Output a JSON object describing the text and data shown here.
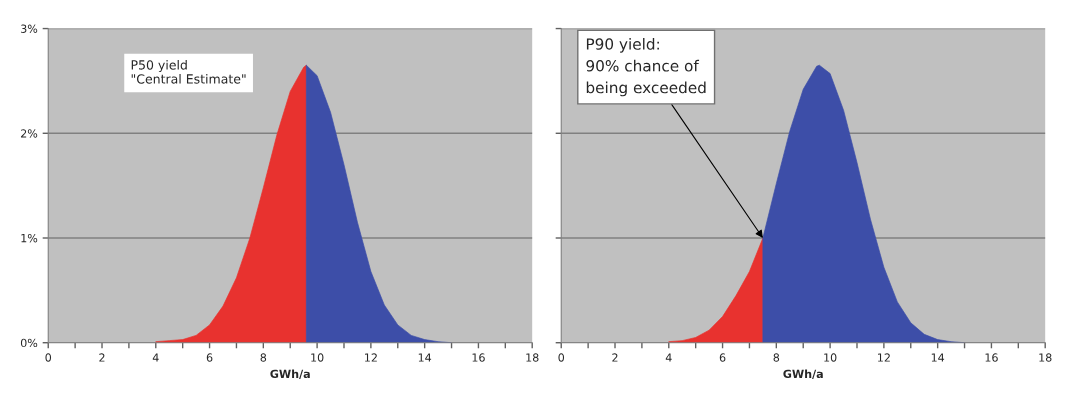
{
  "chart_data": [
    {
      "type": "area",
      "xlabel": "GWh/a",
      "ylim": [
        0,
        3
      ],
      "xlim": [
        0,
        18
      ],
      "yticks": [
        {
          "value": 0,
          "label": "0%"
        },
        {
          "value": 1,
          "label": "1%"
        },
        {
          "value": 2,
          "label": "2%"
        },
        {
          "value": 3,
          "label": "3%"
        }
      ],
      "xticks": [
        0,
        {
          "value": 1,
          "label": null
        },
        2,
        {
          "value": 3,
          "label": null
        },
        4,
        {
          "value": 5,
          "label": null
        },
        6,
        {
          "value": 7,
          "label": null
        },
        8,
        {
          "value": 9,
          "label": null
        },
        10,
        {
          "value": 11,
          "label": null
        },
        12,
        {
          "value": 13,
          "label": null
        },
        14,
        {
          "value": 15,
          "label": null
        },
        16,
        {
          "value": 17,
          "label": null
        },
        18
      ],
      "grid": "y",
      "annotations": [
        "P50 yield\n\"Central Estimate\""
      ],
      "series": [
        {
          "color": "#e8322f",
          "x": [
            4.0,
            4.5,
            5.0,
            5.5,
            6.0,
            6.5,
            7.0,
            7.5,
            8.0,
            8.5,
            9.0,
            9.5,
            9.6
          ],
          "values": [
            0.01,
            0.02,
            0.03,
            0.07,
            0.17,
            0.35,
            0.62,
            1.0,
            1.48,
            1.98,
            2.4,
            2.63,
            2.65
          ]
        },
        {
          "color": "#3d4ea8",
          "x": [
            9.6,
            10.0,
            10.5,
            11.0,
            11.5,
            12.0,
            12.5,
            13.0,
            13.5,
            14.0,
            14.5,
            15.0
          ],
          "values": [
            2.65,
            2.55,
            2.2,
            1.7,
            1.15,
            0.68,
            0.36,
            0.17,
            0.07,
            0.03,
            0.01,
            0.0
          ]
        }
      ]
    },
    {
      "type": "area",
      "xlabel": "GWh/a",
      "ylim": [
        0,
        3
      ],
      "xlim": [
        0,
        18
      ],
      "tick_labels": "x",
      "yticks": [
        {
          "value": 0,
          "label": null
        },
        {
          "value": 1,
          "label": null
        },
        {
          "value": 2,
          "label": null
        },
        {
          "value": 3,
          "label": null
        }
      ],
      "xticks": [
        0,
        {
          "value": 1,
          "label": null
        },
        2,
        {
          "value": 3,
          "label": null
        },
        4,
        {
          "value": 5,
          "label": null
        },
        6,
        {
          "value": 7,
          "label": null
        },
        8,
        {
          "value": 9,
          "label": null
        },
        10,
        {
          "value": 11,
          "label": null
        },
        12,
        {
          "value": 13,
          "label": null
        },
        14,
        {
          "value": 15,
          "label": null
        },
        16,
        {
          "value": 17,
          "label": null
        },
        18
      ],
      "grid": "y",
      "annotations": [
        {
          "text": "P90 yield:\n90% chance of\nbeing exceeded",
          "x": 7.5,
          "y": 1.0
        }
      ],
      "series": [
        {
          "color": "#e8322f",
          "x": [
            4.0,
            4.5,
            5.0,
            5.5,
            6.0,
            6.5,
            7.0,
            7.5
          ],
          "values": [
            0.01,
            0.02,
            0.05,
            0.12,
            0.25,
            0.45,
            0.68,
            1.0
          ]
        },
        {
          "color": "#3d4ea8",
          "x": [
            7.5,
            8.0,
            8.5,
            9.0,
            9.5,
            9.6,
            10.0,
            10.5,
            11.0,
            11.5,
            12.0,
            12.5,
            13.0,
            13.5,
            14.0,
            14.5,
            15.0
          ],
          "values": [
            1.0,
            1.52,
            2.02,
            2.42,
            2.64,
            2.65,
            2.57,
            2.22,
            1.72,
            1.18,
            0.72,
            0.39,
            0.19,
            0.08,
            0.03,
            0.01,
            0.0
          ]
        }
      ]
    }
  ]
}
